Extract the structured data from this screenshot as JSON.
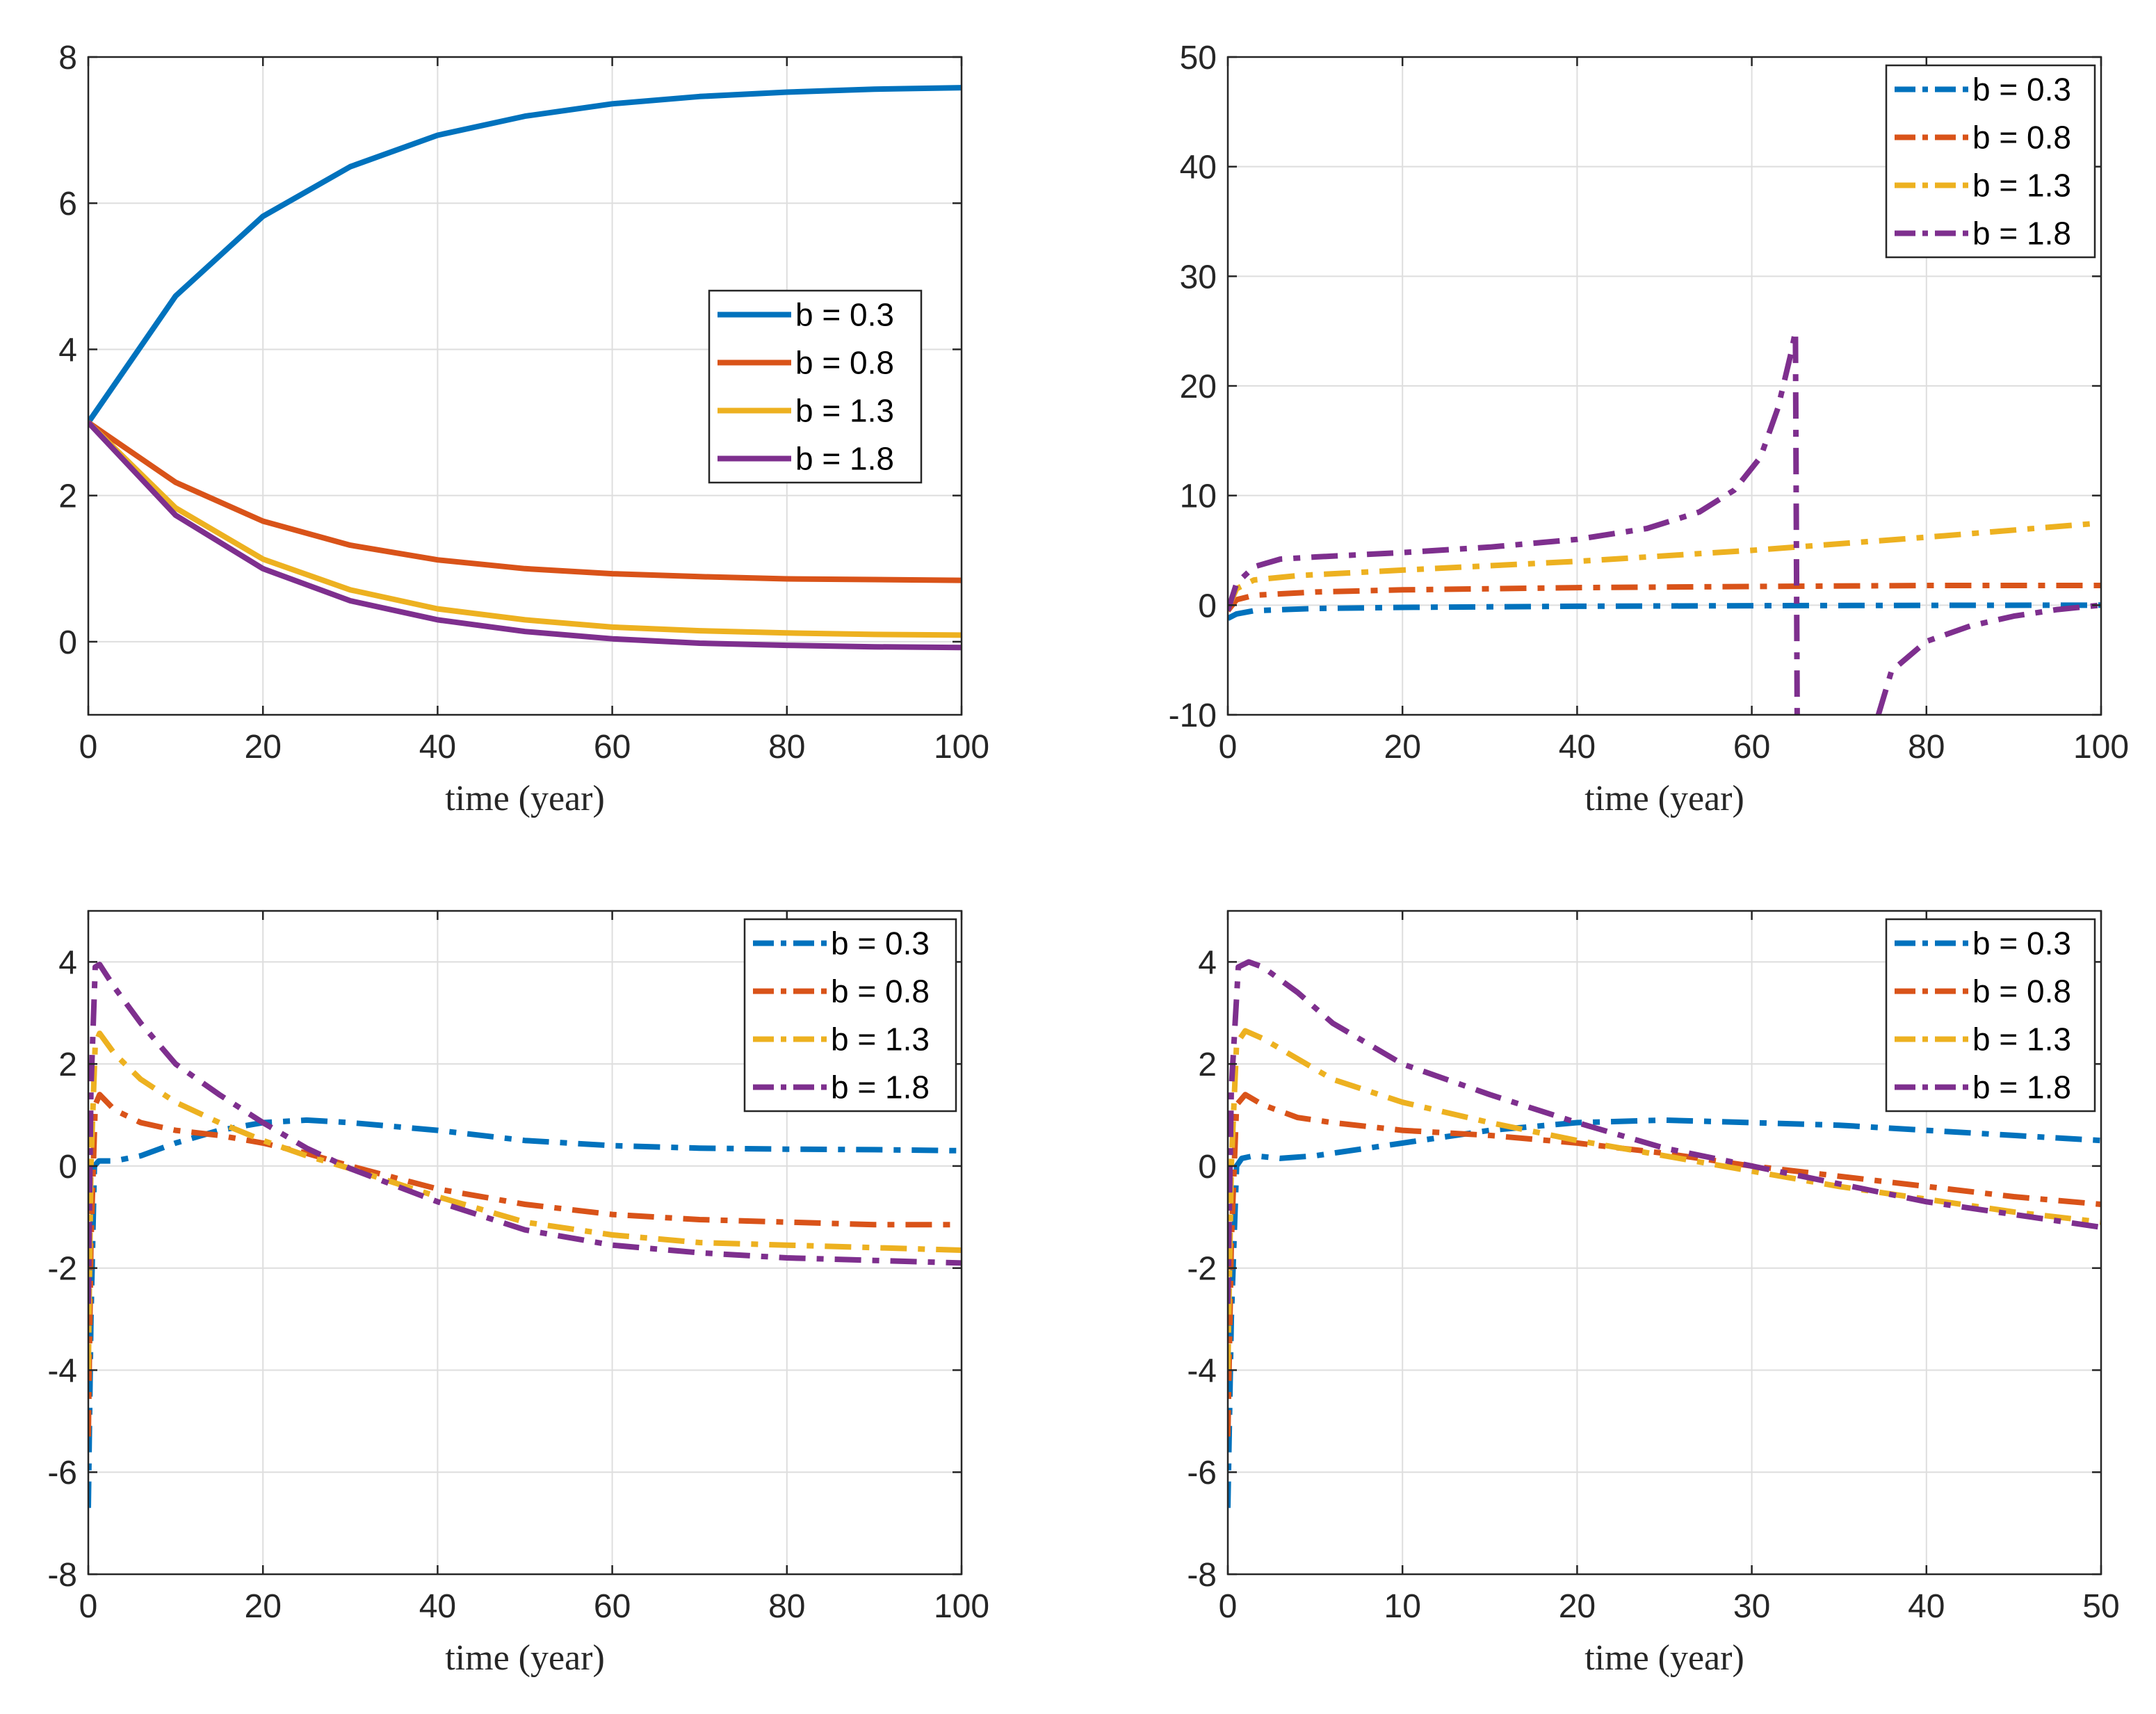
{
  "colors": {
    "b03": "#0072BD",
    "b08": "#D95319",
    "b13": "#EDB120",
    "b18": "#7E2F8E"
  },
  "chart_data": [
    {
      "id": "top-left",
      "type": "line",
      "line_style": "solid",
      "xlabel": "time (year)",
      "ylabel": "",
      "xlim": [
        0,
        100
      ],
      "ylim": [
        -1,
        8
      ],
      "xticks": [
        0,
        20,
        40,
        60,
        80,
        100
      ],
      "yticks": [
        0,
        2,
        4,
        6,
        8
      ],
      "xtick_labels": [
        "0",
        "20",
        "40",
        "60",
        "80",
        "100"
      ],
      "ytick_labels": [
        "0",
        "2",
        "4",
        "6",
        "8"
      ],
      "grid": true,
      "legend_position": "center-right",
      "x": [
        0,
        10,
        20,
        30,
        40,
        50,
        60,
        70,
        80,
        90,
        100
      ],
      "series": [
        {
          "name": "b = 0.3",
          "color": "b03",
          "values": [
            3.0,
            4.73,
            5.82,
            6.5,
            6.93,
            7.19,
            7.36,
            7.46,
            7.52,
            7.56,
            7.58
          ]
        },
        {
          "name": "b = 0.8",
          "color": "b08",
          "values": [
            3.0,
            2.18,
            1.65,
            1.32,
            1.12,
            1.0,
            0.93,
            0.89,
            0.86,
            0.85,
            0.84
          ]
        },
        {
          "name": "b = 1.3",
          "color": "b13",
          "values": [
            3.0,
            1.83,
            1.13,
            0.71,
            0.45,
            0.3,
            0.2,
            0.15,
            0.12,
            0.1,
            0.09
          ]
        },
        {
          "name": "b = 1.8",
          "color": "b18",
          "values": [
            3.0,
            1.73,
            1.0,
            0.56,
            0.3,
            0.14,
            0.04,
            -0.02,
            -0.05,
            -0.07,
            -0.08
          ]
        }
      ]
    },
    {
      "id": "top-right",
      "type": "line",
      "line_style": "dashdot",
      "xlabel": "time (year)",
      "ylabel": "",
      "xlim": [
        0,
        100
      ],
      "ylim": [
        -10,
        50
      ],
      "xticks": [
        0,
        20,
        40,
        60,
        80,
        100
      ],
      "yticks": [
        -10,
        0,
        10,
        20,
        30,
        40,
        50
      ],
      "xtick_labels": [
        "0",
        "20",
        "40",
        "60",
        "80",
        "100"
      ],
      "ytick_labels": [
        "-10",
        "0",
        "10",
        "20",
        "30",
        "40",
        "50"
      ],
      "grid": true,
      "legend_position": "top-right",
      "series": [
        {
          "name": "b = 0.3",
          "color": "b03",
          "segments": [
            [
              [
                0,
                -1.2
              ],
              [
                1,
                -0.8
              ],
              [
                3,
                -0.5
              ],
              [
                10,
                -0.3
              ],
              [
                20,
                -0.2
              ],
              [
                40,
                -0.1
              ],
              [
                60,
                -0.05
              ],
              [
                80,
                -0.02
              ],
              [
                100,
                0.0
              ]
            ]
          ]
        },
        {
          "name": "b = 0.8",
          "color": "b08",
          "segments": [
            [
              [
                0,
                -0.5
              ],
              [
                1,
                0.5
              ],
              [
                3,
                0.9
              ],
              [
                10,
                1.2
              ],
              [
                20,
                1.4
              ],
              [
                40,
                1.6
              ],
              [
                60,
                1.7
              ],
              [
                80,
                1.8
              ],
              [
                100,
                1.8
              ]
            ]
          ]
        },
        {
          "name": "b = 1.3",
          "color": "b13",
          "segments": [
            [
              [
                0,
                -0.3
              ],
              [
                1,
                1.5
              ],
              [
                3,
                2.3
              ],
              [
                8,
                2.7
              ],
              [
                20,
                3.2
              ],
              [
                40,
                4.0
              ],
              [
                60,
                5.0
              ],
              [
                80,
                6.2
              ],
              [
                100,
                7.5
              ]
            ]
          ]
        },
        {
          "name": "b = 1.8",
          "color": "b18",
          "segments": [
            [
              [
                0,
                -0.5
              ],
              [
                1,
                2.0
              ],
              [
                3,
                3.5
              ],
              [
                6,
                4.2
              ],
              [
                10,
                4.4
              ],
              [
                20,
                4.8
              ],
              [
                30,
                5.3
              ],
              [
                40,
                6.0
              ],
              [
                48,
                7.0
              ],
              [
                54,
                8.5
              ],
              [
                58,
                10.5
              ],
              [
                61,
                13.5
              ],
              [
                63,
                18.0
              ],
              [
                64.5,
                23.0
              ],
              [
                65,
                25.0
              ],
              [
                65.2,
                -10.0
              ]
            ],
            [
              [
                74.5,
                -10.0
              ],
              [
                76,
                -6.0
              ],
              [
                80,
                -3.3
              ],
              [
                85,
                -1.9
              ],
              [
                90,
                -1.0
              ],
              [
                95,
                -0.4
              ],
              [
                100,
                0.0
              ]
            ]
          ]
        }
      ]
    },
    {
      "id": "bottom-left",
      "type": "line",
      "line_style": "dashdot",
      "xlabel": "time (year)",
      "ylabel": "",
      "xlim": [
        0,
        100
      ],
      "ylim": [
        -8,
        5
      ],
      "xticks": [
        0,
        20,
        40,
        60,
        80,
        100
      ],
      "yticks": [
        -8,
        -6,
        -4,
        -2,
        0,
        2,
        4
      ],
      "xtick_labels": [
        "0",
        "20",
        "40",
        "60",
        "80",
        "100"
      ],
      "ytick_labels": [
        "-8",
        "-6",
        "-4",
        "-2",
        "0",
        "2",
        "4"
      ],
      "grid": true,
      "legend_position": "top-right",
      "series": [
        {
          "name": "b = 0.3",
          "color": "b03",
          "segments": [
            [
              [
                0,
                -6.7
              ],
              [
                0.3,
                -3.0
              ],
              [
                0.7,
                0.0
              ],
              [
                1.2,
                0.1
              ],
              [
                3,
                0.1
              ],
              [
                6,
                0.2
              ],
              [
                10,
                0.45
              ],
              [
                15,
                0.7
              ],
              [
                20,
                0.85
              ],
              [
                25,
                0.9
              ],
              [
                30,
                0.85
              ],
              [
                40,
                0.7
              ],
              [
                50,
                0.5
              ],
              [
                60,
                0.4
              ],
              [
                70,
                0.35
              ],
              [
                80,
                0.33
              ],
              [
                90,
                0.32
              ],
              [
                100,
                0.3
              ]
            ]
          ]
        },
        {
          "name": "b = 0.8",
          "color": "b08",
          "segments": [
            [
              [
                0,
                -5.3
              ],
              [
                0.3,
                -1.5
              ],
              [
                0.8,
                1.2
              ],
              [
                1.3,
                1.4
              ],
              [
                3,
                1.1
              ],
              [
                6,
                0.85
              ],
              [
                10,
                0.7
              ],
              [
                15,
                0.6
              ],
              [
                20,
                0.45
              ],
              [
                25,
                0.25
              ],
              [
                30,
                0.0
              ],
              [
                40,
                -0.45
              ],
              [
                50,
                -0.75
              ],
              [
                60,
                -0.95
              ],
              [
                70,
                -1.05
              ],
              [
                80,
                -1.1
              ],
              [
                90,
                -1.15
              ],
              [
                100,
                -1.15
              ]
            ]
          ]
        },
        {
          "name": "b = 1.3",
          "color": "b13",
          "segments": [
            [
              [
                0,
                -4.0
              ],
              [
                0.3,
                0.0
              ],
              [
                0.8,
                2.4
              ],
              [
                1.3,
                2.6
              ],
              [
                3,
                2.2
              ],
              [
                6,
                1.7
              ],
              [
                10,
                1.25
              ],
              [
                15,
                0.85
              ],
              [
                20,
                0.5
              ],
              [
                25,
                0.2
              ],
              [
                30,
                -0.05
              ],
              [
                40,
                -0.6
              ],
              [
                50,
                -1.1
              ],
              [
                60,
                -1.35
              ],
              [
                70,
                -1.5
              ],
              [
                80,
                -1.55
              ],
              [
                90,
                -1.6
              ],
              [
                100,
                -1.65
              ]
            ]
          ]
        },
        {
          "name": "b = 1.8",
          "color": "b18",
          "segments": [
            [
              [
                0,
                -2.7
              ],
              [
                0.3,
                1.5
              ],
              [
                0.8,
                3.9
              ],
              [
                1.3,
                3.95
              ],
              [
                3,
                3.5
              ],
              [
                6,
                2.8
              ],
              [
                10,
                2.0
              ],
              [
                15,
                1.4
              ],
              [
                20,
                0.85
              ],
              [
                25,
                0.35
              ],
              [
                30,
                -0.05
              ],
              [
                40,
                -0.7
              ],
              [
                50,
                -1.25
              ],
              [
                60,
                -1.55
              ],
              [
                70,
                -1.7
              ],
              [
                80,
                -1.8
              ],
              [
                90,
                -1.85
              ],
              [
                100,
                -1.9
              ]
            ]
          ]
        }
      ]
    },
    {
      "id": "bottom-right",
      "type": "line",
      "line_style": "dashdot",
      "xlabel": "time (year)",
      "ylabel": "",
      "xlim": [
        0,
        50
      ],
      "ylim": [
        -8,
        5
      ],
      "xticks": [
        0,
        10,
        20,
        30,
        40,
        50
      ],
      "yticks": [
        -8,
        -6,
        -4,
        -2,
        0,
        2,
        4
      ],
      "xtick_labels": [
        "0",
        "10",
        "20",
        "30",
        "40",
        "50"
      ],
      "ytick_labels": [
        "-8",
        "-6",
        "-4",
        "-2",
        "0",
        "2",
        "4"
      ],
      "grid": true,
      "legend_position": "top-right",
      "series": [
        {
          "name": "b = 0.3",
          "color": "b03",
          "segments": [
            [
              [
                0,
                -6.7
              ],
              [
                0.2,
                -3.0
              ],
              [
                0.5,
                0.0
              ],
              [
                0.8,
                0.15
              ],
              [
                1.5,
                0.2
              ],
              [
                3,
                0.15
              ],
              [
                5,
                0.2
              ],
              [
                8,
                0.35
              ],
              [
                10,
                0.45
              ],
              [
                15,
                0.7
              ],
              [
                20,
                0.85
              ],
              [
                25,
                0.9
              ],
              [
                30,
                0.85
              ],
              [
                35,
                0.8
              ],
              [
                40,
                0.7
              ],
              [
                45,
                0.6
              ],
              [
                50,
                0.5
              ]
            ]
          ]
        },
        {
          "name": "b = 0.8",
          "color": "b08",
          "segments": [
            [
              [
                0,
                -5.3
              ],
              [
                0.2,
                -1.5
              ],
              [
                0.5,
                1.2
              ],
              [
                1,
                1.4
              ],
              [
                2,
                1.2
              ],
              [
                4,
                0.95
              ],
              [
                6,
                0.85
              ],
              [
                10,
                0.7
              ],
              [
                15,
                0.6
              ],
              [
                20,
                0.45
              ],
              [
                25,
                0.25
              ],
              [
                30,
                0.0
              ],
              [
                35,
                -0.2
              ],
              [
                40,
                -0.4
              ],
              [
                45,
                -0.6
              ],
              [
                50,
                -0.75
              ]
            ]
          ]
        },
        {
          "name": "b = 1.3",
          "color": "b13",
          "segments": [
            [
              [
                0,
                -4.0
              ],
              [
                0.2,
                0.0
              ],
              [
                0.5,
                2.4
              ],
              [
                1,
                2.65
              ],
              [
                2,
                2.5
              ],
              [
                4,
                2.1
              ],
              [
                6,
                1.7
              ],
              [
                10,
                1.25
              ],
              [
                15,
                0.85
              ],
              [
                20,
                0.5
              ],
              [
                25,
                0.2
              ],
              [
                30,
                -0.1
              ],
              [
                35,
                -0.4
              ],
              [
                40,
                -0.65
              ],
              [
                45,
                -0.9
              ],
              [
                50,
                -1.1
              ]
            ]
          ]
        },
        {
          "name": "b = 1.8",
          "color": "b18",
          "segments": [
            [
              [
                0,
                -2.7
              ],
              [
                0.2,
                1.5
              ],
              [
                0.6,
                3.9
              ],
              [
                1.2,
                4.0
              ],
              [
                2,
                3.9
              ],
              [
                4,
                3.4
              ],
              [
                6,
                2.8
              ],
              [
                10,
                2.0
              ],
              [
                15,
                1.4
              ],
              [
                20,
                0.85
              ],
              [
                25,
                0.35
              ],
              [
                30,
                0.0
              ],
              [
                35,
                -0.35
              ],
              [
                40,
                -0.7
              ],
              [
                45,
                -0.95
              ],
              [
                50,
                -1.2
              ]
            ]
          ]
        }
      ]
    }
  ]
}
